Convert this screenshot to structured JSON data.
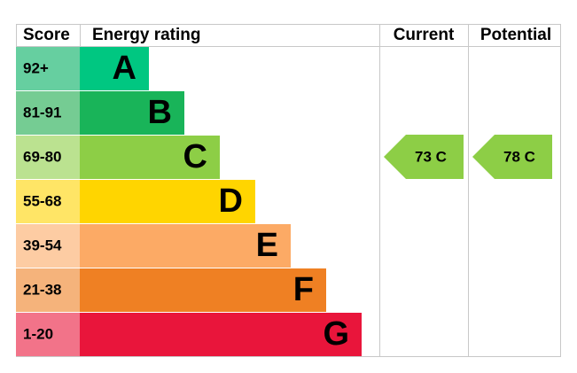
{
  "header": {
    "score": "Score",
    "rating": "Energy rating",
    "current": "Current",
    "potential": "Potential"
  },
  "bands": [
    {
      "score": "92+",
      "letter": "A",
      "color": "#00c781",
      "score_color": "#66cfa0"
    },
    {
      "score": "81-91",
      "letter": "B",
      "color": "#19b459",
      "score_color": "#75cc93"
    },
    {
      "score": "69-80",
      "letter": "C",
      "color": "#8dce46",
      "score_color": "#bbe290"
    },
    {
      "score": "55-68",
      "letter": "D",
      "color": "#ffd500",
      "score_color": "#ffe566"
    },
    {
      "score": "39-54",
      "letter": "E",
      "color": "#fcaa65",
      "score_color": "#fdcca3"
    },
    {
      "score": "21-38",
      "letter": "F",
      "color": "#ef8023",
      "score_color": "#f5b37b"
    },
    {
      "score": "1-20",
      "letter": "G",
      "color": "#e9153b",
      "score_color": "#f27389"
    }
  ],
  "current": {
    "label": "73 C"
  },
  "potential": {
    "label": "78 C"
  }
}
